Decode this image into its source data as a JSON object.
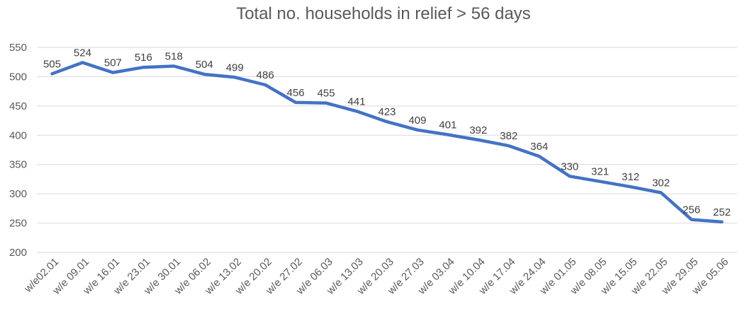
{
  "chart_data": {
    "type": "line",
    "title": "Total no. households in relief > 56 days",
    "xlabel": "",
    "ylabel": "",
    "ylim": [
      200,
      550
    ],
    "yticks": [
      200,
      250,
      300,
      350,
      400,
      450,
      500,
      550
    ],
    "grid": true,
    "legend": "none",
    "categories": [
      "w/e02.01",
      "w/e 09.01",
      "w/e 16.01",
      "w/e 23.01",
      "w/e 30.01",
      "w/e 06.02",
      "w/e 13.02",
      "w/e 20.02",
      "w/e 27.02",
      "w/e 06.03",
      "w/e 13.03",
      "w/e 20.03",
      "w/e 27.03",
      "w/e 03.04",
      "w/e 10.04",
      "w/e 17.04",
      "w/e 24.04",
      "w/e 01.05",
      "w/e 08.05",
      "w/e 15.05",
      "w/e 22.05",
      "w/e 29.05",
      "w/e 05.06"
    ],
    "series": [
      {
        "values": [
          505,
          524,
          507,
          516,
          518,
          504,
          499,
          486,
          456,
          455,
          441,
          423,
          409,
          401,
          392,
          382,
          364,
          330,
          321,
          312,
          302,
          256,
          252
        ],
        "color": "#4472c4"
      }
    ]
  }
}
